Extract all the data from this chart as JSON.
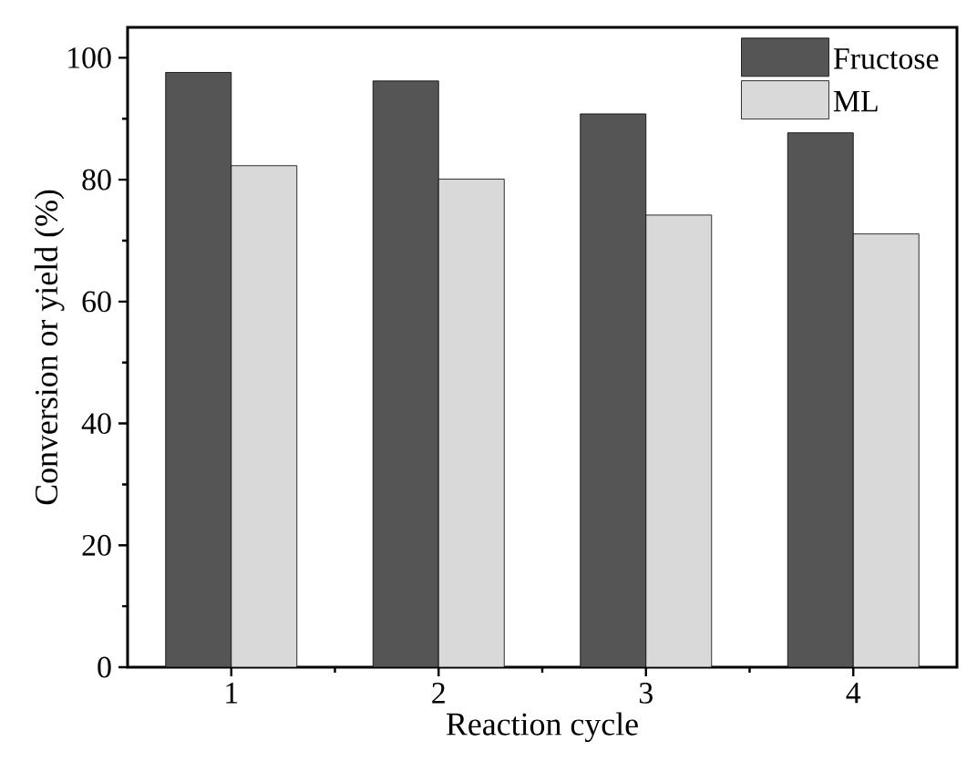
{
  "chart_data": {
    "type": "bar",
    "xlabel": "Reaction cycle",
    "ylabel": "Conversion or yield (%)",
    "categories": [
      "1",
      "2",
      "3",
      "4"
    ],
    "series": [
      {
        "name": "Fructose",
        "color": "#555555",
        "values": [
          97.6,
          96.2,
          90.8,
          87.7
        ]
      },
      {
        "name": "ML",
        "color": "#d9d9d9",
        "values": [
          82.3,
          80.1,
          74.2,
          71.1
        ]
      }
    ],
    "ylim": [
      0,
      105
    ],
    "yticks": [
      0,
      20,
      40,
      60,
      80,
      100
    ],
    "grid": false,
    "legend": "top right"
  }
}
